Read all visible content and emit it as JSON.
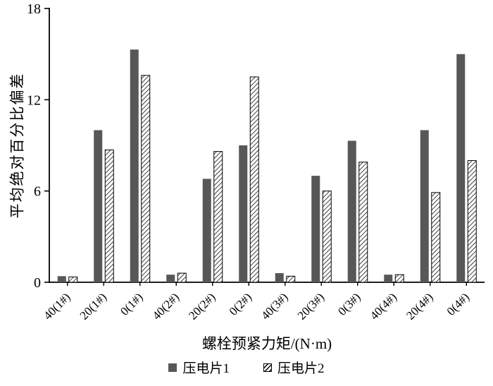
{
  "chart_data": {
    "type": "bar",
    "title": "",
    "xlabel": "螺栓预紧力矩/(N·m)",
    "ylabel": "平均绝对百分比偏差",
    "ylim": [
      0,
      18
    ],
    "yticks": [
      0,
      6,
      12,
      18
    ],
    "grid": false,
    "legend_position": "bottom",
    "categories": [
      "40(1#)",
      "20(1#)",
      "0(1#)",
      "40(2#)",
      "20(2#)",
      "0(2#)",
      "40(3#)",
      "20(3#)",
      "0(3#)",
      "40(4#)",
      "20(4#)",
      "0(4#)"
    ],
    "series": [
      {
        "name": "压电片1",
        "style": "solid",
        "color": "#575757",
        "values": [
          0.4,
          10.0,
          15.3,
          0.5,
          6.8,
          9.0,
          0.6,
          7.0,
          9.3,
          0.5,
          10.0,
          15.0
        ]
      },
      {
        "name": "压电片2",
        "style": "hatch",
        "color": "#000000",
        "values": [
          0.35,
          8.7,
          13.6,
          0.6,
          8.6,
          13.5,
          0.4,
          6.0,
          7.9,
          0.5,
          5.9,
          8.0
        ]
      }
    ]
  }
}
